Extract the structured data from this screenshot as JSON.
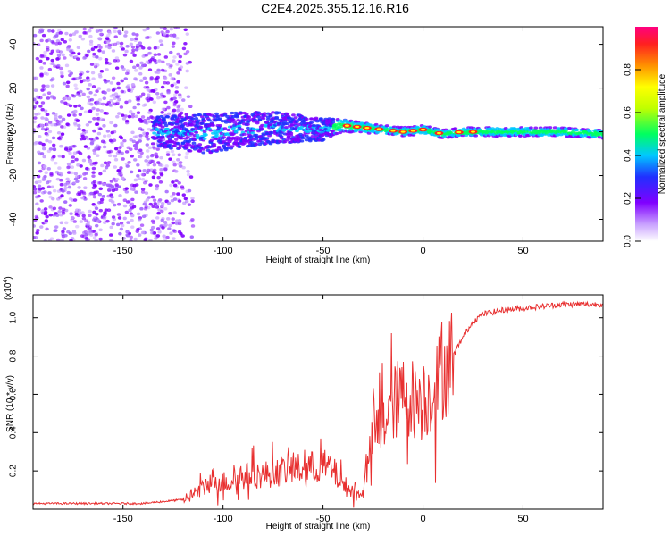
{
  "title": "C2E4.2025.355.12.16.R16",
  "chart_data": [
    {
      "type": "heatmap",
      "panel": "spectrogram",
      "xlabel": "Height of straight line (km)",
      "ylabel": "Frequency (Hz)",
      "xlim": [
        -195,
        90
      ],
      "ylim": [
        -50,
        48
      ],
      "x_ticks": [
        -150,
        -100,
        -50,
        0,
        50
      ],
      "y_ticks": [
        -40,
        -20,
        0,
        20,
        40
      ],
      "colorbar": {
        "label": "Normalized spectral amplitude",
        "range": [
          0.0,
          1.0
        ],
        "ticks": [
          0.0,
          0.2,
          0.4,
          0.6,
          0.8
        ],
        "tick_labels": [
          "0.0",
          "0.2",
          "0.4",
          "0.6",
          "0.8"
        ],
        "colors": [
          "#ffffff",
          "#c8a0ff",
          "#8000ff",
          "#2030ff",
          "#00c8ff",
          "#00ff60",
          "#c0ff00",
          "#ffff00",
          "#ff9000",
          "#ff2020",
          "#ff0080"
        ]
      },
      "description_series": [
        {
          "name": "signal_center_Hz",
          "x": [
            -130,
            -110,
            -90,
            -70,
            -50,
            -40,
            -30,
            -20,
            -10,
            0,
            10,
            20,
            30,
            50,
            70,
            90
          ],
          "y": [
            0,
            -1,
            1,
            2,
            1,
            3,
            2,
            1,
            0,
            1,
            -1,
            0,
            0,
            0,
            0,
            -1
          ]
        },
        {
          "name": "signal_width_Hz",
          "x": [
            -130,
            -110,
            -90,
            -70,
            -50,
            -40,
            -30,
            -20,
            -10,
            0,
            10,
            20,
            30,
            50,
            70,
            90
          ],
          "y": [
            14,
            18,
            16,
            14,
            10,
            6,
            5,
            4,
            4,
            4,
            4,
            4,
            4,
            4,
            4,
            4
          ]
        }
      ]
    },
    {
      "type": "line",
      "panel": "snr",
      "xlabel": "Height of straight line (km)",
      "ylabel": "SNR (10 * v/v)",
      "y_multiplier_label": "(x10",
      "y_multiplier_exp": "4",
      "xlim": [
        -195,
        90
      ],
      "ylim": [
        0.0,
        1.12
      ],
      "x_ticks": [
        -150,
        -100,
        -50,
        0,
        50
      ],
      "y_ticks": [
        0.2,
        0.4,
        0.6,
        0.8,
        1.0
      ],
      "series": [
        {
          "name": "SNR",
          "color": "#e83030",
          "x": [
            -195,
            -180,
            -160,
            -140,
            -130,
            -120,
            -115,
            -110,
            -105,
            -100,
            -95,
            -90,
            -85,
            -80,
            -75,
            -70,
            -65,
            -60,
            -55,
            -50,
            -45,
            -40,
            -35,
            -32,
            -30,
            -28,
            -26,
            -24,
            -22,
            -20,
            -15,
            -10,
            -5,
            0,
            5,
            10,
            15,
            20,
            25,
            30,
            40,
            50,
            60,
            70,
            80,
            90
          ],
          "y": [
            0.03,
            0.03,
            0.03,
            0.03,
            0.04,
            0.05,
            0.08,
            0.11,
            0.16,
            0.14,
            0.15,
            0.17,
            0.18,
            0.18,
            0.19,
            0.2,
            0.21,
            0.21,
            0.22,
            0.23,
            0.2,
            0.13,
            0.09,
            0.07,
            0.12,
            0.2,
            0.32,
            0.4,
            0.43,
            0.46,
            0.55,
            0.6,
            0.58,
            0.55,
            0.62,
            0.72,
            0.8,
            0.9,
            0.98,
            1.02,
            1.04,
            1.05,
            1.06,
            1.07,
            1.07,
            1.07
          ]
        }
      ]
    }
  ]
}
